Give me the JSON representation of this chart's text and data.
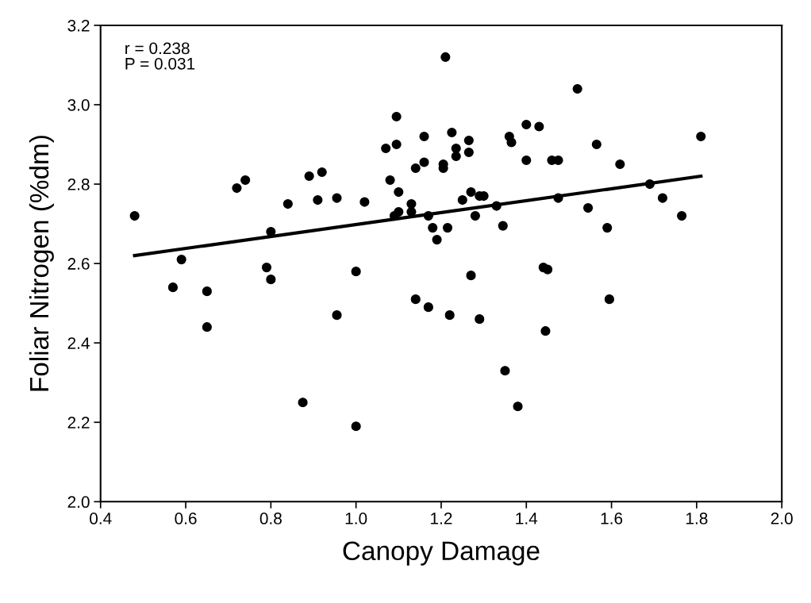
{
  "chart_data": {
    "type": "scatter",
    "xlabel": "Canopy Damage",
    "ylabel": "Foliar Nitrogen (%dm)",
    "xlim": [
      0.4,
      2.0
    ],
    "xticks": [
      {
        "value": 0.4,
        "label": "0.4"
      },
      {
        "value": 0.6,
        "label": "0.6"
      },
      {
        "value": 0.8,
        "label": "0.8"
      },
      {
        "value": 1.0,
        "label": "1.0"
      },
      {
        "value": 1.2,
        "label": "1.2"
      },
      {
        "value": 1.4,
        "label": "1.4"
      },
      {
        "value": 1.6,
        "label": "1.6"
      },
      {
        "value": 1.8,
        "label": "1.8"
      },
      {
        "value": 2.0,
        "label": "2.0"
      }
    ],
    "ylim": [
      2.0,
      3.2
    ],
    "yticks": [
      {
        "value": 2.0,
        "label": "2.0"
      },
      {
        "value": 2.2,
        "label": "2.2"
      },
      {
        "value": 2.4,
        "label": "2.4"
      },
      {
        "value": 2.6,
        "label": "2.6"
      },
      {
        "value": 2.8,
        "label": "2.8"
      },
      {
        "value": 3.0,
        "label": "3.0"
      },
      {
        "value": 3.2,
        "label": "3.2"
      }
    ],
    "grid": false,
    "annotations": [
      "r = 0.238\nP = 0.031"
    ],
    "series": [
      {
        "color": "#000000",
        "marker": "circle",
        "x": [
          0.48,
          0.57,
          0.59,
          0.65,
          0.65,
          0.72,
          0.74,
          0.79,
          0.8,
          0.8,
          0.84,
          0.875,
          0.89,
          0.91,
          0.92,
          0.955,
          0.955,
          1.0,
          1.0,
          1.02,
          1.07,
          1.08,
          1.09,
          1.095,
          1.095,
          1.1,
          1.1,
          1.13,
          1.13,
          1.14,
          1.14,
          1.16,
          1.16,
          1.17,
          1.17,
          1.18,
          1.19,
          1.205,
          1.205,
          1.21,
          1.215,
          1.22,
          1.225,
          1.235,
          1.235,
          1.25,
          1.265,
          1.265,
          1.27,
          1.27,
          1.28,
          1.29,
          1.29,
          1.3,
          1.33,
          1.345,
          1.35,
          1.36,
          1.365,
          1.38,
          1.4,
          1.4,
          1.43,
          1.44,
          1.445,
          1.45,
          1.46,
          1.475,
          1.475,
          1.52,
          1.545,
          1.565,
          1.59,
          1.595,
          1.62,
          1.69,
          1.72,
          1.765,
          1.81
        ],
        "values": [
          2.72,
          2.54,
          2.61,
          2.53,
          2.44,
          2.79,
          2.81,
          2.59,
          2.56,
          2.68,
          2.75,
          2.25,
          2.82,
          2.76,
          2.83,
          2.765,
          2.47,
          2.19,
          2.58,
          2.755,
          2.89,
          2.81,
          2.72,
          2.9,
          2.97,
          2.78,
          2.73,
          2.75,
          2.73,
          2.84,
          2.51,
          2.855,
          2.92,
          2.72,
          2.49,
          2.69,
          2.66,
          2.84,
          2.85,
          3.12,
          2.69,
          2.47,
          2.93,
          2.89,
          2.87,
          2.76,
          2.91,
          2.88,
          2.78,
          2.57,
          2.72,
          2.77,
          2.46,
          2.77,
          2.745,
          2.695,
          2.33,
          2.92,
          2.905,
          2.24,
          2.86,
          2.95,
          2.945,
          2.59,
          2.43,
          2.585,
          2.86,
          2.86,
          2.765,
          3.04,
          2.74,
          2.9,
          2.69,
          2.51,
          2.85,
          2.8,
          2.765,
          2.72,
          2.92
        ]
      },
      {
        "type": "line",
        "color": "#000000",
        "x": [
          0.48,
          1.81
        ],
        "values": [
          2.62,
          2.82
        ]
      }
    ]
  }
}
